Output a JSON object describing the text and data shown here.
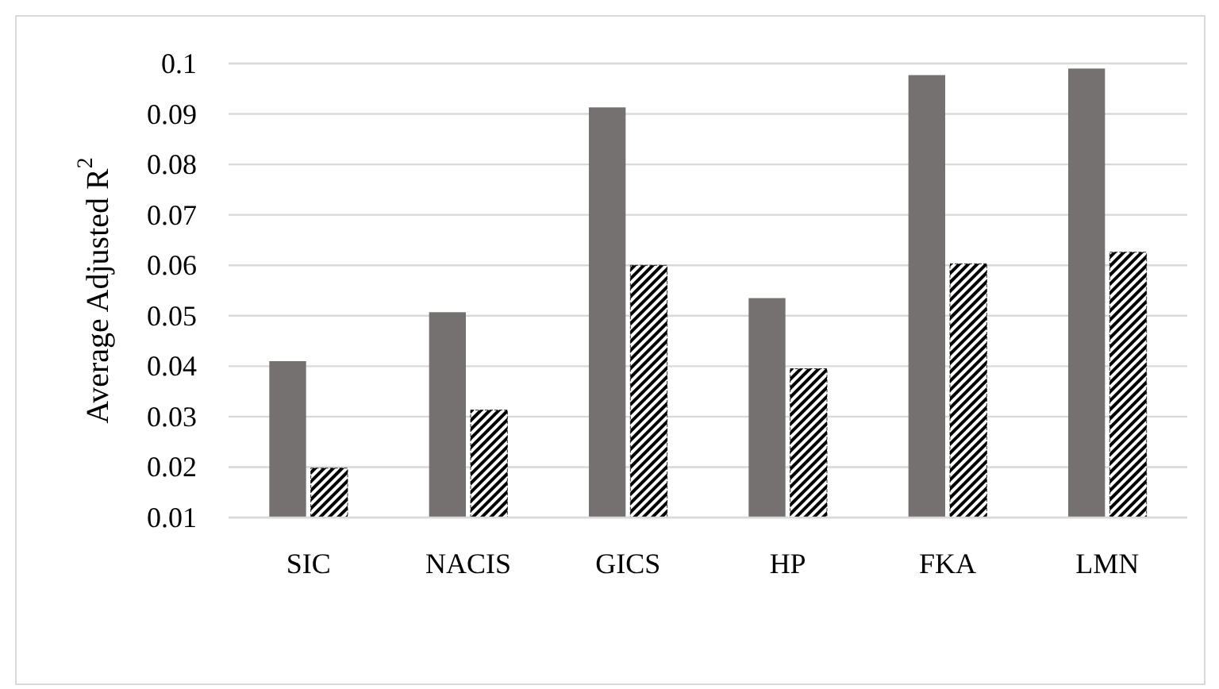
{
  "chart_data": {
    "type": "bar",
    "ylabel": "Average Adjusted R$^{2}$",
    "categories": [
      "SIC",
      "NACIS",
      "GICS",
      "HP",
      "FKA",
      "LMN"
    ],
    "series": [
      {
        "color": "#767171",
        "values": [
          0.041,
          0.0507,
          0.0913,
          0.0535,
          0.0977,
          0.099
        ]
      },
      {
        "color": "#000000",
        "values": [
          0.0198,
          0.0313,
          0.06,
          0.0395,
          0.0603,
          0.0626
        ]
      }
    ],
    "ylim": [
      0.01,
      0.1
    ],
    "yticks": [
      0.01,
      0.02,
      0.03,
      0.04,
      0.05,
      0.06,
      0.07,
      0.08,
      0.09,
      0.1
    ],
    "grid": "y"
  }
}
